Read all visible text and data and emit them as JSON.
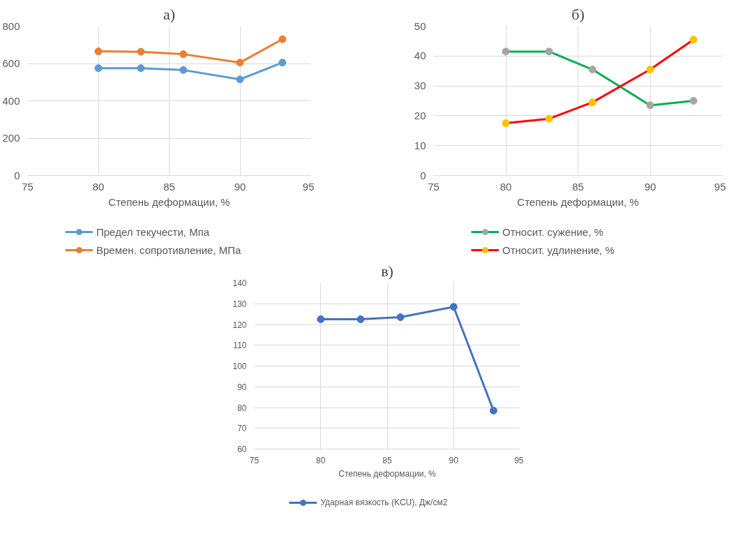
{
  "chart_data": [
    {
      "type": "line",
      "title": "а)",
      "xlabel": "Степень деформации, %",
      "x": [
        80,
        83,
        86,
        90,
        93
      ],
      "xlim": [
        75,
        95
      ],
      "xticks": [
        75,
        80,
        85,
        90,
        95
      ],
      "ylim": [
        0,
        800
      ],
      "yticks": [
        0,
        200,
        400,
        600,
        800
      ],
      "grid": true,
      "legend": "bottom",
      "marker": "circle",
      "line_style": "solid",
      "series": [
        {
          "name": "Предел текучести, Мпа",
          "color": "#5b9bd5",
          "values": [
            575,
            575,
            565,
            515,
            605
          ]
        },
        {
          "name": "Времен. сопротивление, МПа",
          "color": "#ed7d31",
          "values": [
            665,
            663,
            650,
            605,
            730
          ]
        }
      ]
    },
    {
      "type": "line",
      "title": "б)",
      "xlabel": "Степень деформации, %",
      "x": [
        80,
        83,
        86,
        90,
        93
      ],
      "xlim": [
        75,
        95
      ],
      "xticks": [
        75,
        80,
        85,
        90,
        95
      ],
      "ylim": [
        0,
        50
      ],
      "yticks": [
        0,
        10,
        20,
        30,
        40,
        50
      ],
      "grid": true,
      "legend": "bottom",
      "marker": "circle",
      "line_style": "solid",
      "series": [
        {
          "name": "Относит. сужение, %",
          "color": "#00b050",
          "colors": [
            "#a5a5a5",
            "#a5a5a5",
            "#a5a5a5",
            "#a5a5a5",
            "#a5a5a5"
          ],
          "values": [
            41.5,
            41.5,
            35.5,
            23.5,
            25
          ]
        },
        {
          "name": "Относит. удлинение, %",
          "color": "#ff0000",
          "colors": [
            "#ffc000",
            "#ffc000",
            "#ffc000",
            "#ffc000",
            "#ffc000"
          ],
          "values": [
            17.5,
            19,
            24.5,
            35.5,
            45.5
          ]
        }
      ]
    },
    {
      "type": "line",
      "title": "в)",
      "xlabel": "Степень деформации, %",
      "x": [
        80,
        83,
        86,
        90,
        93
      ],
      "xlim": [
        75,
        95
      ],
      "xticks": [
        75,
        80,
        85,
        90,
        95
      ],
      "ylim": [
        60,
        140
      ],
      "yticks": [
        60,
        70,
        80,
        90,
        100,
        110,
        120,
        130,
        140
      ],
      "grid": true,
      "legend": "bottom",
      "marker": "circle",
      "line_style": "solid",
      "series": [
        {
          "name": "Ударная вязкость (KCU), Дж/см2",
          "color": "#4472c4",
          "values": [
            122.5,
            122.5,
            123.5,
            128.5,
            78.5
          ]
        }
      ]
    }
  ]
}
